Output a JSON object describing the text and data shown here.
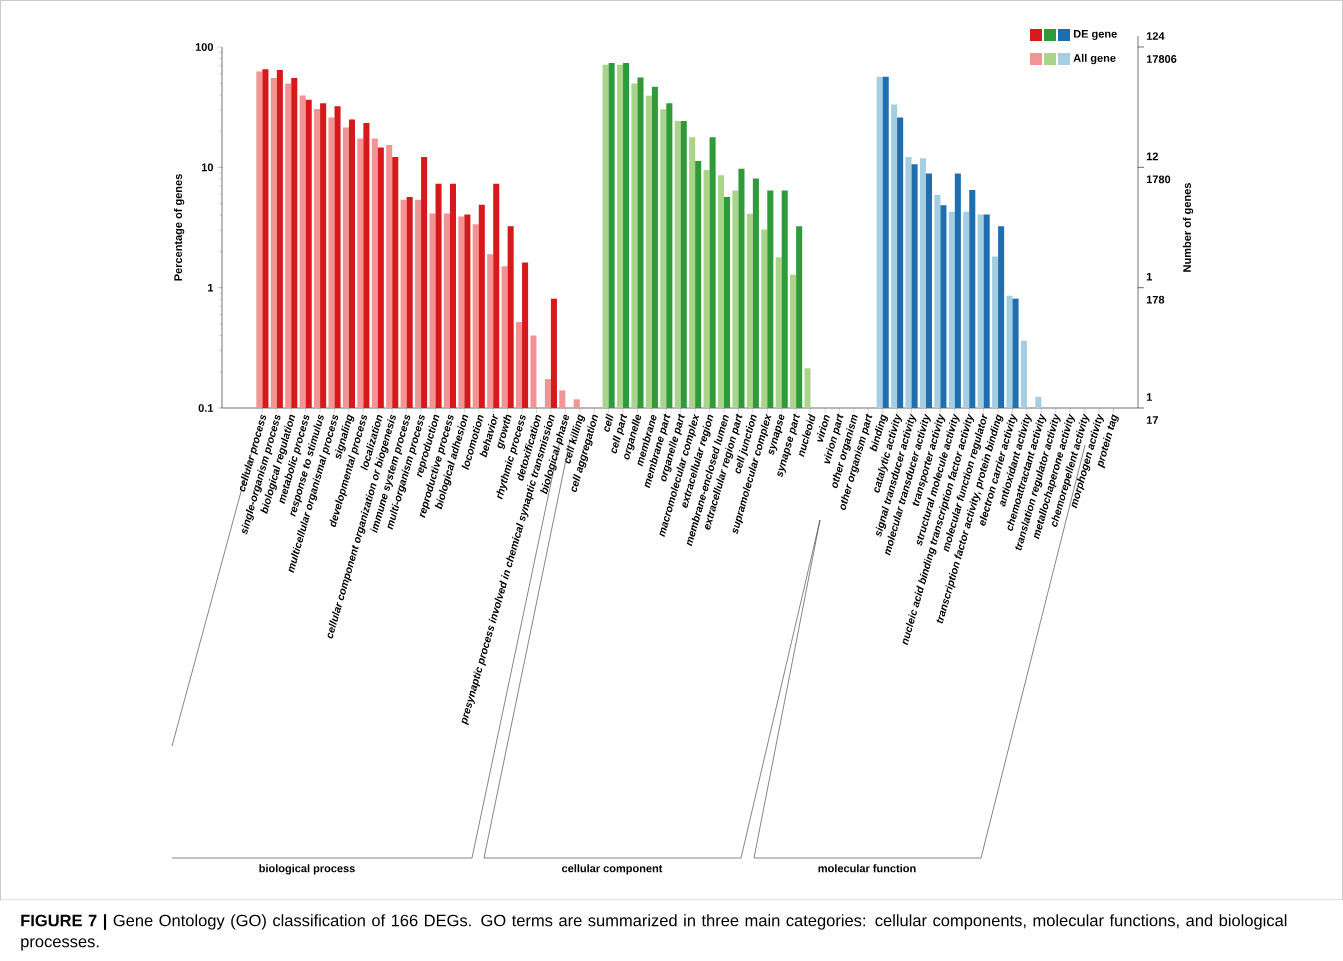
{
  "chart_data": {
    "type": "bar",
    "log": "y",
    "categories": [
      "cellular process",
      "single-organism process",
      "biological regulation",
      "metabolic process",
      "response to stimulus",
      "multicellular organismal process",
      "signaling",
      "developmental process",
      "localization",
      "cellular component organization or biogenesis",
      "immune system process",
      "multi-organism process",
      "reproduction",
      "reproductive process",
      "biological adhesion",
      "locomotion",
      "behavior",
      "growth",
      "rhythmic process",
      "detoxification",
      "presynaptic process involved in chemical synaptic transmission",
      "biological phase",
      "cell killing",
      "cell aggregation",
      "cell",
      "cell part",
      "organelle",
      "membrane",
      "membrane part",
      "organelle part",
      "macromolecular complex",
      "extracellular region",
      "membrane-enclosed lumen",
      "extracellular region part",
      "cell junction",
      "supramolecular complex",
      "synapse",
      "synapse part",
      "nucleoid",
      "virion",
      "virion part",
      "other organism",
      "other organism part",
      "binding",
      "catalytic activity",
      "signal transducer activity",
      "molecular transducer activity",
      "transporter activity",
      "structural molecule activity",
      "nucleic acid binding transcription factor activity",
      "molecular function regulator",
      "transcription factor activity, protein binding",
      "electron carrier activity",
      "antioxidant activity",
      "chemoattractant activity",
      "translation regulator activity",
      "metallochaperone activity",
      "chemorepellent activity",
      "morphogen activity",
      "protein tag"
    ],
    "series": [
      {
        "name": "All gene",
        "colors": [
          "#f29494",
          "#f29494",
          "#f29494",
          "#f29494",
          "#f29494",
          "#f29494",
          "#f29494",
          "#f29494",
          "#f29494",
          "#f29494",
          "#f29494",
          "#f29494",
          "#f29494",
          "#f29494",
          "#f29494",
          "#f29494",
          "#f29494",
          "#f29494",
          "#f29494",
          "#f29494",
          "#f29494",
          "#f29494",
          "#f29494",
          "#f29494",
          "#aad48a",
          "#aad48a",
          "#aad48a",
          "#aad48a",
          "#aad48a",
          "#aad48a",
          "#aad48a",
          "#aad48a",
          "#aad48a",
          "#aad48a",
          "#aad48a",
          "#aad48a",
          "#aad48a",
          "#aad48a",
          "#aad48a",
          "#aad48a",
          "#aad48a",
          "#aad48a",
          "#aad48a",
          "#a6cee3",
          "#a6cee3",
          "#a6cee3",
          "#a6cee3",
          "#a6cee3",
          "#a6cee3",
          "#a6cee3",
          "#a6cee3",
          "#a6cee3",
          "#a6cee3",
          "#a6cee3",
          "#a6cee3",
          "#a6cee3",
          "#a6cee3",
          "#a6cee3",
          "#a6cee3",
          "#a6cee3"
        ],
        "values": [
          62.7,
          55.2,
          49.8,
          39.6,
          30.6,
          25.9,
          21.4,
          17.4,
          17.4,
          15.3,
          5.38,
          5.38,
          4.14,
          4.14,
          3.91,
          3.37,
          1.9,
          1.51,
          0.518,
          0.4,
          0.174,
          0.14,
          0.118,
          null,
          71.2,
          71.2,
          49.8,
          39.3,
          30.4,
          24.3,
          17.8,
          9.5,
          8.58,
          6.43,
          4.11,
          3.04,
          1.79,
          1.28,
          0.214,
          null,
          null,
          null,
          null,
          56.6,
          33.3,
          12.2,
          11.9,
          5.88,
          4.27,
          4.27,
          4.06,
          1.82,
          0.858,
          0.362,
          0.124,
          null,
          null,
          null,
          null,
          null
        ]
      },
      {
        "name": "DE gene",
        "colors": [
          "#d7191c",
          "#d7191c",
          "#d7191c",
          "#d7191c",
          "#d7191c",
          "#d7191c",
          "#d7191c",
          "#d7191c",
          "#d7191c",
          "#d7191c",
          "#d7191c",
          "#d7191c",
          "#d7191c",
          "#d7191c",
          "#d7191c",
          "#d7191c",
          "#d7191c",
          "#d7191c",
          "#d7191c",
          "#d7191c",
          "#d7191c",
          "#d7191c",
          "#d7191c",
          "#d7191c",
          "#2f9a3a",
          "#2f9a3a",
          "#2f9a3a",
          "#2f9a3a",
          "#2f9a3a",
          "#2f9a3a",
          "#2f9a3a",
          "#2f9a3a",
          "#2f9a3a",
          "#2f9a3a",
          "#2f9a3a",
          "#2f9a3a",
          "#2f9a3a",
          "#2f9a3a",
          "#2f9a3a",
          "#2f9a3a",
          "#2f9a3a",
          "#2f9a3a",
          "#2f9a3a",
          "#1f6fb0",
          "#1f6fb0",
          "#1f6fb0",
          "#1f6fb0",
          "#1f6fb0",
          "#1f6fb0",
          "#1f6fb0",
          "#1f6fb0",
          "#1f6fb0",
          "#1f6fb0",
          "#1f6fb0",
          "#1f6fb0",
          "#1f6fb0",
          "#1f6fb0",
          "#1f6fb0",
          "#1f6fb0",
          "#1f6fb0"
        ],
        "values": [
          65.2,
          64.3,
          55.2,
          36.4,
          34.1,
          32.2,
          25.0,
          23.4,
          14.6,
          12.2,
          5.66,
          12.2,
          7.31,
          7.31,
          4.06,
          4.89,
          7.31,
          3.24,
          1.62,
          null,
          0.81,
          null,
          null,
          null,
          73.6,
          73.6,
          55.9,
          46.7,
          34.1,
          24.3,
          11.3,
          17.8,
          5.66,
          9.75,
          8.09,
          6.43,
          6.43,
          3.24,
          null,
          null,
          null,
          null,
          null,
          56.6,
          25.9,
          10.6,
          8.91,
          4.85,
          8.91,
          6.47,
          4.06,
          3.24,
          0.81,
          null,
          null,
          null,
          null,
          null,
          null,
          null
        ]
      }
    ],
    "ylim": [
      0.1,
      100
    ],
    "yticks": [
      0.1,
      1,
      10,
      100
    ],
    "ylabel": "Percentage of genes",
    "legend": "top right",
    "annotations": [
      "biological process",
      "cellular component",
      "molecular function",
      "**FIGURE 7 |** Gene Ontology (GO) classification of 166 DEGs. GO terms are summarized in three main categories: cellular components, molecular functions, and biological processes.",
      "124",
      "17806",
      "12",
      "1780",
      "1",
      "178",
      "1",
      "17",
      "Number of genes"
    ]
  }
}
